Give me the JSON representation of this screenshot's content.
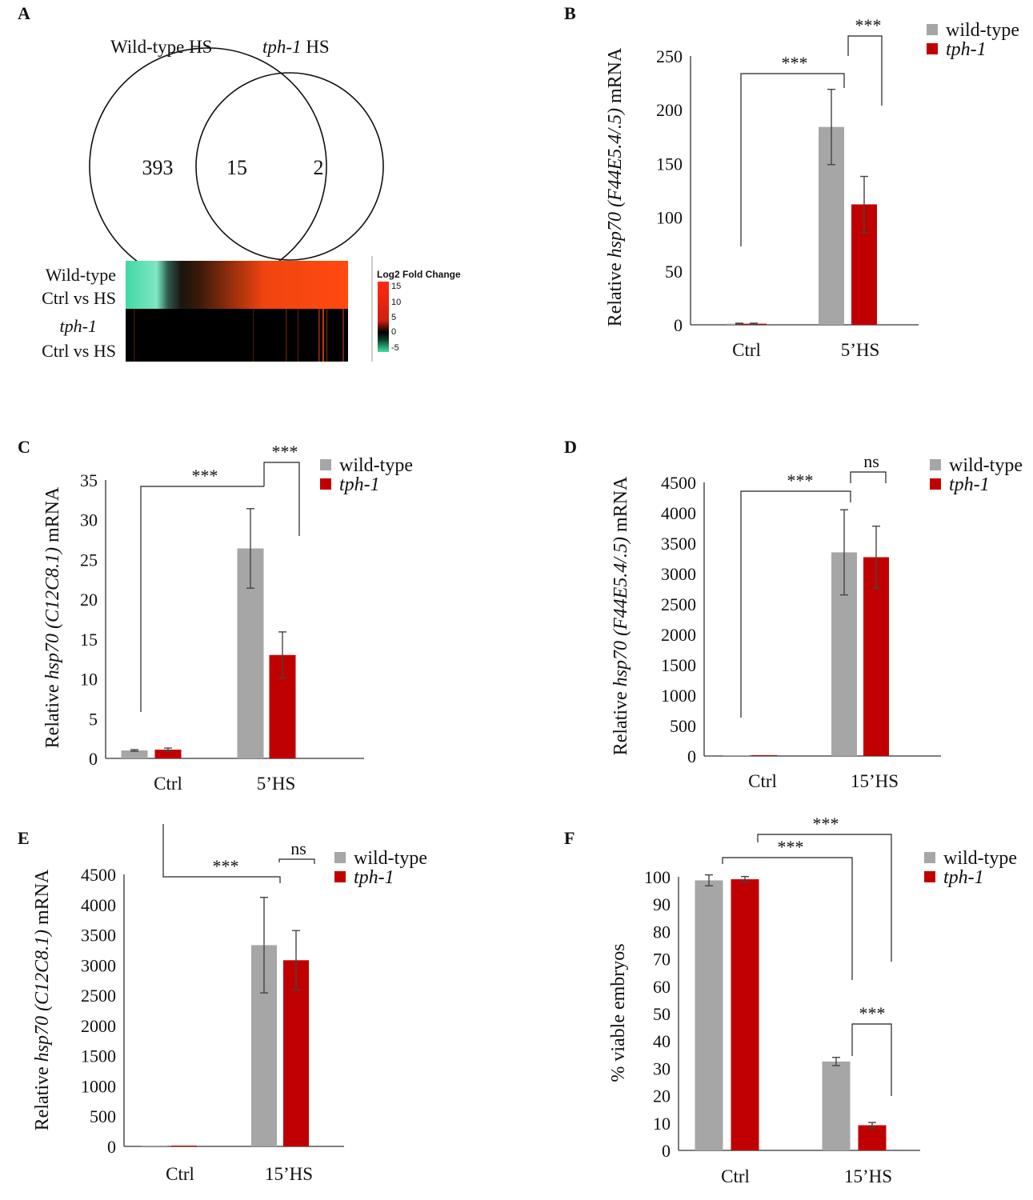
{
  "colors": {
    "wt": "#a6a6a6",
    "tph": "#c00000",
    "axis": "#333333",
    "err": "#444444"
  },
  "panelA": {
    "letter": "A",
    "venn": {
      "left_title": "Wild-type HS",
      "right_title_it": "tph-1",
      "right_title_rest": " HS",
      "left_count": "393",
      "overlap_count": "15",
      "right_count": "2"
    },
    "heatmap": {
      "row1_line1": "Wild-type",
      "row1_line2": "Ctrl vs HS",
      "row2_line1": "tph-1",
      "row2_line2": "Ctrl vs HS",
      "legend_title": "Log2 Fold Change",
      "legend_ticks": [
        "15",
        "10",
        "5",
        "0",
        "-5"
      ]
    }
  },
  "chart_data": [
    {
      "letter": "B",
      "type": "bar",
      "categories": [
        "Ctrl",
        "5’HS"
      ],
      "series": [
        {
          "name": "wild-type",
          "values": [
            1,
            184
          ],
          "err": [
            0.5,
            35
          ]
        },
        {
          "name": "tph-1",
          "values": [
            1,
            112
          ],
          "err": [
            0.5,
            26
          ]
        }
      ],
      "ylabel_pre": "Relative ",
      "ylabel_it": "hsp70 (F44E5.4/.5)",
      "ylabel_post": " mRNA",
      "ylim": [
        0,
        250
      ],
      "yticks": [
        "0",
        "50",
        "100",
        "150",
        "200",
        "250"
      ],
      "legend": [
        "wild-type",
        "tph-1"
      ],
      "annotations": [
        "***",
        "***"
      ]
    },
    {
      "letter": "C",
      "type": "bar",
      "categories": [
        "Ctrl",
        "5’HS"
      ],
      "series": [
        {
          "name": "wild-type",
          "values": [
            1,
            26.4
          ],
          "err": [
            0.1,
            5
          ]
        },
        {
          "name": "tph-1",
          "values": [
            1.1,
            13
          ],
          "err": [
            0.2,
            2.9
          ]
        }
      ],
      "ylabel_pre": "Relative ",
      "ylabel_it": "hsp70 (C12C8.1)",
      "ylabel_post": " mRNA",
      "ylim": [
        0,
        35
      ],
      "yticks": [
        "0",
        "5",
        "10",
        "15",
        "20",
        "25",
        "30",
        "35"
      ],
      "legend": [
        "wild-type",
        "tph-1"
      ],
      "annotations": [
        "***",
        "***"
      ]
    },
    {
      "letter": "D",
      "type": "bar",
      "categories": [
        "Ctrl",
        "15’HS"
      ],
      "series": [
        {
          "name": "wild-type",
          "values": [
            1,
            3350
          ],
          "err": [
            0,
            700
          ]
        },
        {
          "name": "tph-1",
          "values": [
            1,
            3270
          ],
          "err": [
            0,
            510
          ]
        }
      ],
      "ylabel_pre": "Relative ",
      "ylabel_it": "hsp70 (F44E5.4/.5)",
      "ylabel_post": " mRNA",
      "ylim": [
        0,
        4500
      ],
      "yticks": [
        "0",
        "500",
        "1000",
        "1500",
        "2000",
        "2500",
        "3000",
        "3500",
        "4000",
        "4500"
      ],
      "legend": [
        "wild-type",
        "tph-1"
      ],
      "annotations": [
        "***",
        "ns"
      ]
    },
    {
      "letter": "E",
      "type": "bar",
      "categories": [
        "Ctrl",
        "15’HS"
      ],
      "series": [
        {
          "name": "wild-type",
          "values": [
            1,
            3330
          ],
          "err": [
            0,
            790
          ]
        },
        {
          "name": "tph-1",
          "values": [
            1,
            3080
          ],
          "err": [
            0,
            490
          ]
        }
      ],
      "ylabel_pre": "Relative ",
      "ylabel_it": "hsp70 (C12C8.1)",
      "ylabel_post": " mRNA",
      "ylim": [
        0,
        4500
      ],
      "yticks": [
        "0",
        "500",
        "1000",
        "1500",
        "2000",
        "2500",
        "3000",
        "3500",
        "4000",
        "4500"
      ],
      "legend": [
        "wild-type",
        "tph-1"
      ],
      "annotations": [
        "***",
        "ns"
      ]
    },
    {
      "letter": "F",
      "type": "bar",
      "categories": [
        "Ctrl",
        "15’HS"
      ],
      "series": [
        {
          "name": "wild-type",
          "values": [
            98.7,
            32.5
          ],
          "err": [
            2,
            1.5
          ]
        },
        {
          "name": "tph-1",
          "values": [
            99.1,
            9.2
          ],
          "err": [
            1,
            1
          ]
        }
      ],
      "ylabel_pre": "% viable embryos",
      "ylabel_it": "",
      "ylabel_post": "",
      "ylim": [
        0,
        100
      ],
      "yticks": [
        "0",
        "10",
        "20",
        "30",
        "40",
        "50",
        "60",
        "70",
        "80",
        "90",
        "100"
      ],
      "legend": [
        "wild-type",
        "tph-1"
      ],
      "annotations": [
        "***",
        "***",
        "***"
      ]
    }
  ]
}
